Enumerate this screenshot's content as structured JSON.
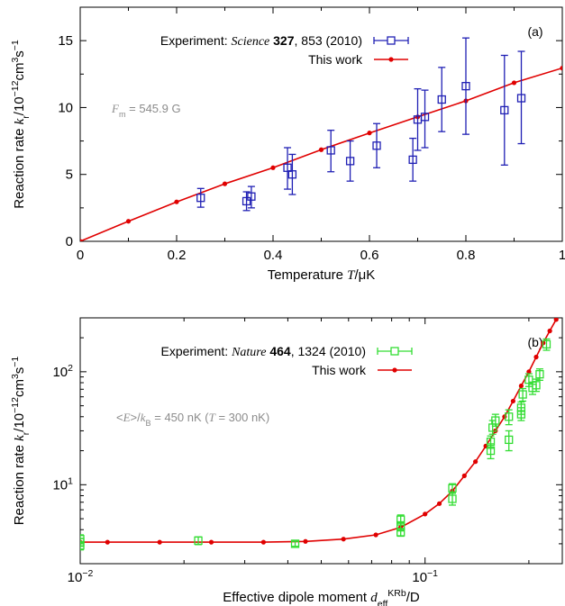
{
  "chart_data": [
    {
      "type": "scatter",
      "panel_label": "(a)",
      "x_scale": "linear",
      "y_scale": "linear",
      "xlim": [
        0,
        1
      ],
      "ylim": [
        0,
        17.5
      ],
      "x_ticks": [
        0,
        0.2,
        0.4,
        0.6,
        0.8,
        1
      ],
      "x_tick_labels": [
        "0",
        "0.2",
        "0.4",
        "0.6",
        "0.8",
        "1"
      ],
      "y_ticks": [
        0,
        5,
        10,
        15
      ],
      "y_tick_labels": [
        "0",
        "5",
        "10",
        "15"
      ],
      "xlabel": {
        "pre": "Temperature ",
        "var": "T",
        "post": "/μK"
      },
      "ylabel": {
        "pre": "Reaction rate ",
        "k": "k",
        "sub": "r",
        "mid": "/10",
        "exp": "−12",
        "unit": "cm",
        "exp2": "3",
        "unit2": "s",
        "exp3": "−1"
      },
      "annotation": {
        "var": "F",
        "sub": "m",
        "rest": " = 545.9 G"
      },
      "legend_position": "top-right",
      "series": [
        {
          "name": {
            "pre": "Experiment: ",
            "journal": "Science",
            "vol": "327",
            "rest": ", 853 (2010)"
          },
          "kind": "errorbar",
          "color": "#1f1fb4",
          "points": [
            {
              "x": 0.25,
              "y": 3.25,
              "ylo": 2.55,
              "yhi": 3.95
            },
            {
              "x": 0.345,
              "y": 3.0,
              "ylo": 2.3,
              "yhi": 3.7
            },
            {
              "x": 0.355,
              "y": 3.35,
              "ylo": 2.5,
              "yhi": 4.1
            },
            {
              "x": 0.43,
              "y": 5.5,
              "ylo": 3.9,
              "yhi": 7.0
            },
            {
              "x": 0.44,
              "y": 5.0,
              "ylo": 3.5,
              "yhi": 6.5
            },
            {
              "x": 0.52,
              "y": 6.8,
              "ylo": 5.2,
              "yhi": 8.3
            },
            {
              "x": 0.56,
              "y": 6.0,
              "ylo": 4.5,
              "yhi": 7.5
            },
            {
              "x": 0.615,
              "y": 7.15,
              "ylo": 5.5,
              "yhi": 8.8
            },
            {
              "x": 0.69,
              "y": 6.1,
              "ylo": 4.5,
              "yhi": 7.7
            },
            {
              "x": 0.7,
              "y": 9.1,
              "ylo": 6.8,
              "yhi": 11.4
            },
            {
              "x": 0.715,
              "y": 9.3,
              "ylo": 7.0,
              "yhi": 11.3
            },
            {
              "x": 0.75,
              "y": 10.6,
              "ylo": 8.2,
              "yhi": 13.0
            },
            {
              "x": 0.8,
              "y": 11.6,
              "ylo": 8.0,
              "yhi": 15.2
            },
            {
              "x": 0.88,
              "y": 9.8,
              "ylo": 5.7,
              "yhi": 13.9
            },
            {
              "x": 0.915,
              "y": 10.7,
              "ylo": 7.3,
              "yhi": 14.2
            }
          ]
        },
        {
          "name": "This work",
          "kind": "line",
          "color": "#e00000",
          "x": [
            0,
            0.1,
            0.2,
            0.3,
            0.4,
            0.5,
            0.6,
            0.7,
            0.8,
            0.9,
            1.0
          ],
          "y": [
            0,
            1.5,
            2.95,
            4.3,
            5.5,
            6.85,
            8.1,
            9.3,
            10.5,
            11.85,
            12.95
          ]
        }
      ]
    },
    {
      "type": "scatter",
      "panel_label": "(b)",
      "x_scale": "log",
      "y_scale": "log",
      "xlim": [
        0.01,
        0.25
      ],
      "ylim": [
        2,
        300
      ],
      "x_ticks": [
        0.01,
        0.1
      ],
      "x_tick_labels": [
        {
          "base": "10",
          "exp": "−2"
        },
        {
          "base": "10",
          "exp": "−1"
        }
      ],
      "y_ticks": [
        10,
        100
      ],
      "y_tick_labels": [
        {
          "base": "10",
          "exp": "1"
        },
        {
          "base": "10",
          "exp": "2"
        }
      ],
      "xlabel": {
        "pre": "Effective dipole moment ",
        "var": "d",
        "sub": "eff",
        "sup": "KRb",
        "post": "/D"
      },
      "ylabel": {
        "pre": "Reaction rate ",
        "k": "k",
        "sub": "r",
        "mid": "/10",
        "exp": "−12",
        "unit": "cm",
        "exp2": "3",
        "unit2": "s",
        "exp3": "−1"
      },
      "annotation": {
        "pre": "<",
        "var": "E",
        "mid": ">/",
        "var2": "k",
        "sub": "B",
        "rest1": " = 450 nK (",
        "var3": "T",
        "rest2": " = 300 nK)"
      },
      "legend_position": "top-right",
      "series": [
        {
          "name": {
            "pre": "Experiment: ",
            "journal": "Nature",
            "vol": "464",
            "rest": ", 1324 (2010)"
          },
          "kind": "errorbar",
          "color": "#33dd33",
          "points": [
            {
              "x": 0.01,
              "y": 3.3,
              "ylo": 3.0,
              "yhi": 3.6
            },
            {
              "x": 0.01,
              "y": 3.1,
              "ylo": 2.85,
              "yhi": 3.35
            },
            {
              "x": 0.01,
              "y": 2.9,
              "ylo": 2.65,
              "yhi": 3.15
            },
            {
              "x": 0.022,
              "y": 3.2,
              "ylo": 2.95,
              "yhi": 3.45
            },
            {
              "x": 0.042,
              "y": 3.0,
              "ylo": 2.85,
              "yhi": 3.15
            },
            {
              "x": 0.085,
              "y": 4.9,
              "ylo": 4.4,
              "yhi": 5.4
            },
            {
              "x": 0.085,
              "y": 4.3,
              "ylo": 3.9,
              "yhi": 4.7
            },
            {
              "x": 0.085,
              "y": 3.8,
              "ylo": 3.5,
              "yhi": 4.1
            },
            {
              "x": 0.12,
              "y": 9.3,
              "ylo": 8.4,
              "yhi": 10.2
            },
            {
              "x": 0.12,
              "y": 7.5,
              "ylo": 6.6,
              "yhi": 8.4
            },
            {
              "x": 0.155,
              "y": 20,
              "ylo": 17,
              "yhi": 23
            },
            {
              "x": 0.155,
              "y": 24,
              "ylo": 21,
              "yhi": 27
            },
            {
              "x": 0.157,
              "y": 32,
              "ylo": 28,
              "yhi": 37
            },
            {
              "x": 0.16,
              "y": 37,
              "ylo": 33,
              "yhi": 42
            },
            {
              "x": 0.175,
              "y": 25,
              "ylo": 20,
              "yhi": 30
            },
            {
              "x": 0.175,
              "y": 40,
              "ylo": 34,
              "yhi": 46
            },
            {
              "x": 0.19,
              "y": 42,
              "ylo": 37,
              "yhi": 48
            },
            {
              "x": 0.19,
              "y": 48,
              "ylo": 42,
              "yhi": 54
            },
            {
              "x": 0.192,
              "y": 63,
              "ylo": 55,
              "yhi": 71
            },
            {
              "x": 0.2,
              "y": 85,
              "ylo": 74,
              "yhi": 96
            },
            {
              "x": 0.205,
              "y": 72,
              "ylo": 63,
              "yhi": 81
            },
            {
              "x": 0.21,
              "y": 76,
              "ylo": 67,
              "yhi": 86
            },
            {
              "x": 0.215,
              "y": 95,
              "ylo": 84,
              "yhi": 106
            },
            {
              "x": 0.225,
              "y": 175,
              "ylo": 155,
              "yhi": 195
            }
          ]
        },
        {
          "name": "This work",
          "kind": "line",
          "color": "#e00000",
          "x": [
            0.01,
            0.012,
            0.017,
            0.024,
            0.034,
            0.045,
            0.058,
            0.072,
            0.085,
            0.1,
            0.11,
            0.12,
            0.13,
            0.14,
            0.15,
            0.16,
            0.17,
            0.18,
            0.19,
            0.2,
            0.21,
            0.22,
            0.23,
            0.24
          ],
          "y": [
            3.1,
            3.1,
            3.1,
            3.1,
            3.1,
            3.15,
            3.3,
            3.6,
            4.2,
            5.5,
            6.8,
            8.8,
            12,
            16,
            22,
            30,
            40,
            55,
            75,
            100,
            135,
            180,
            230,
            290
          ]
        }
      ]
    }
  ]
}
